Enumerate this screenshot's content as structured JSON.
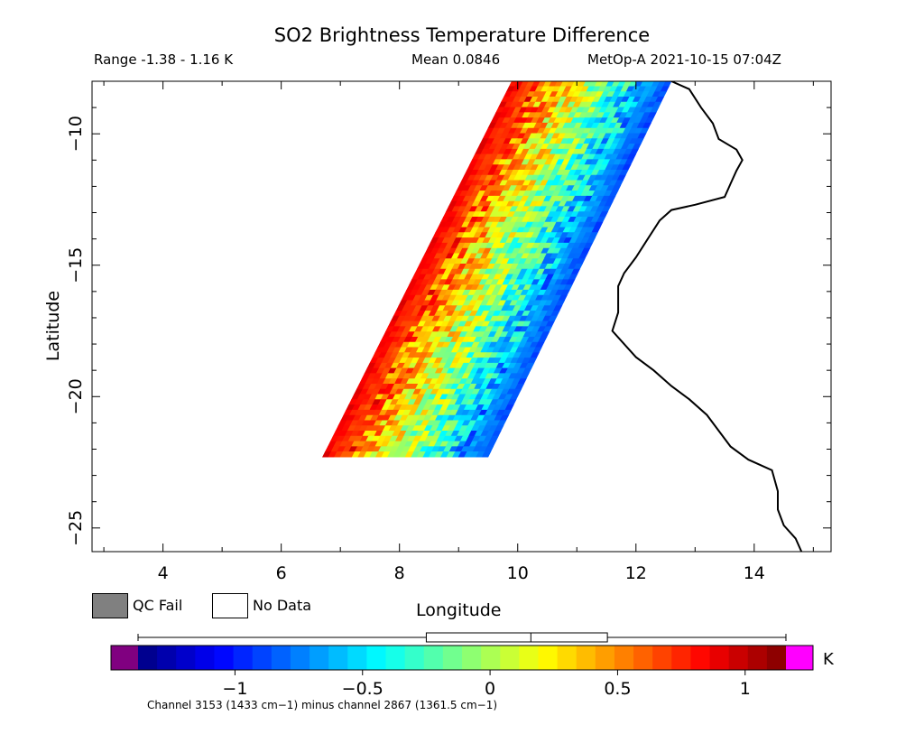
{
  "title": "SO2 Brightness Temperature Difference",
  "range_text": "Range -1.38 - 1.16 K",
  "mean_text": "Mean 0.0846",
  "satellite_text": "MetOp-A 2021-10-15 07:04Z",
  "legend": {
    "qc_fail_label": "QC Fail",
    "qc_fail_color": "#808080",
    "no_data_label": "No Data",
    "no_data_color": "#ffffff"
  },
  "colorbar": {
    "unit": "K",
    "min": -1.38,
    "max": 1.16,
    "ticks": [
      -1,
      -0.5,
      0,
      0.5,
      1
    ],
    "tick_labels": [
      "−1",
      "−0.5",
      "0",
      "0.5",
      "1"
    ],
    "under_color": "#800080",
    "over_color": "#ff00ff",
    "boxplot": {
      "min": -1.38,
      "q1": -0.25,
      "median": 0.16,
      "q3": 0.46,
      "max": 1.16
    }
  },
  "footnote": "Channel 3153 (1433 cm−1) minus channel 2867 (1361.5 cm−1)",
  "chart_data": {
    "type": "heatmap",
    "title": "SO2 Brightness Temperature Difference",
    "xlabel": "Longitude",
    "ylabel": "Latitude",
    "xlim": [
      2.8,
      15.3
    ],
    "ylim": [
      -25.9,
      -8.0
    ],
    "xticks": [
      4,
      6,
      8,
      10,
      12,
      14
    ],
    "xtick_labels": [
      "4",
      "6",
      "8",
      "10",
      "12",
      "14"
    ],
    "yticks": [
      -10,
      -15,
      -20,
      -25
    ],
    "ytick_labels": [
      "−10",
      "−15",
      "−20",
      "−25"
    ],
    "swath": {
      "lat_top": -8.0,
      "lat_bottom": -22.3,
      "west_edge_lon_top": 9.9,
      "west_edge_lon_bottom": 6.7,
      "east_edge_lon_top": 12.6,
      "east_edge_lon_bottom": 9.5,
      "value_west_edge": 0.9,
      "value_east_edge": -0.9
    },
    "coastline": [
      [
        12.6,
        -8.0
      ],
      [
        12.9,
        -8.3
      ],
      [
        13.1,
        -9.0
      ],
      [
        13.3,
        -9.6
      ],
      [
        13.4,
        -10.2
      ],
      [
        13.7,
        -10.6
      ],
      [
        13.8,
        -11.0
      ],
      [
        13.7,
        -11.4
      ],
      [
        13.6,
        -11.9
      ],
      [
        13.5,
        -12.4
      ],
      [
        13.0,
        -12.7
      ],
      [
        12.6,
        -12.9
      ],
      [
        12.4,
        -13.3
      ],
      [
        12.2,
        -14.0
      ],
      [
        12.0,
        -14.7
      ],
      [
        11.8,
        -15.3
      ],
      [
        11.7,
        -15.8
      ],
      [
        11.7,
        -16.3
      ],
      [
        11.7,
        -16.8
      ],
      [
        11.6,
        -17.5
      ],
      [
        11.8,
        -18.0
      ],
      [
        12.0,
        -18.5
      ],
      [
        12.3,
        -19.0
      ],
      [
        12.6,
        -19.6
      ],
      [
        12.9,
        -20.1
      ],
      [
        13.2,
        -20.7
      ],
      [
        13.4,
        -21.3
      ],
      [
        13.6,
        -21.9
      ],
      [
        13.9,
        -22.4
      ],
      [
        14.3,
        -22.8
      ],
      [
        14.4,
        -23.6
      ],
      [
        14.4,
        -24.3
      ],
      [
        14.5,
        -24.9
      ],
      [
        14.7,
        -25.4
      ],
      [
        14.8,
        -25.9
      ]
    ]
  }
}
